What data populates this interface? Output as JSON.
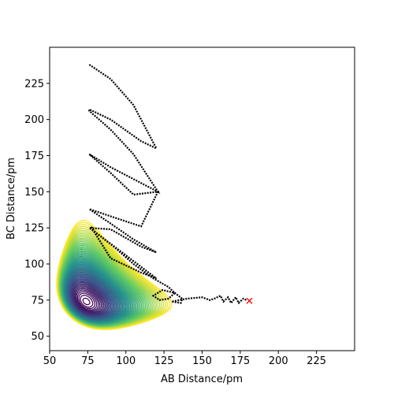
{
  "chart_data": {
    "type": "contour",
    "title": "",
    "xlabel": "AB Distance/pm",
    "ylabel": "BC Distance/pm",
    "xlim": [
      50,
      250
    ],
    "ylim": [
      40,
      250
    ],
    "xticks": [
      50,
      75,
      100,
      125,
      150,
      175,
      200,
      225
    ],
    "yticks": [
      50,
      75,
      100,
      125,
      150,
      175,
      200,
      225
    ],
    "colormap": [
      "#440154",
      "#3b528b",
      "#21918c",
      "#5ec962",
      "#fde725"
    ],
    "contour_levels": 60,
    "trajectory": {
      "color": "#000000",
      "x": [
        76,
        90,
        105,
        120,
        110,
        90,
        76,
        76,
        90,
        105,
        121,
        110,
        90,
        76,
        76,
        90,
        105,
        121,
        110,
        90,
        76,
        76,
        90,
        105,
        120,
        110,
        90,
        76,
        76,
        90,
        105,
        120,
        110,
        90,
        77,
        80,
        92,
        105,
        118,
        128,
        132,
        128,
        122,
        118,
        124,
        132,
        137,
        136,
        130,
        140,
        150,
        155,
        158,
        162,
        164,
        167,
        169,
        172,
        174,
        177,
        179
      ],
      "y": [
        238,
        228,
        210,
        180,
        185,
        200,
        207,
        206,
        193,
        176,
        150,
        156,
        167,
        176,
        176,
        163,
        148,
        150,
        126,
        133,
        138,
        138,
        128,
        117,
        108,
        112,
        124,
        125,
        125,
        114,
        102,
        90,
        94,
        104,
        126,
        122,
        112,
        100,
        90,
        84,
        80,
        76,
        75,
        78,
        82,
        80,
        76,
        73,
        74,
        76,
        77,
        75,
        76,
        78,
        74,
        77,
        73,
        77,
        73,
        76,
        75
      ]
    },
    "end_marker": {
      "x": 181,
      "y": 74.5,
      "symbol": "x",
      "color": "#ff0000"
    }
  }
}
